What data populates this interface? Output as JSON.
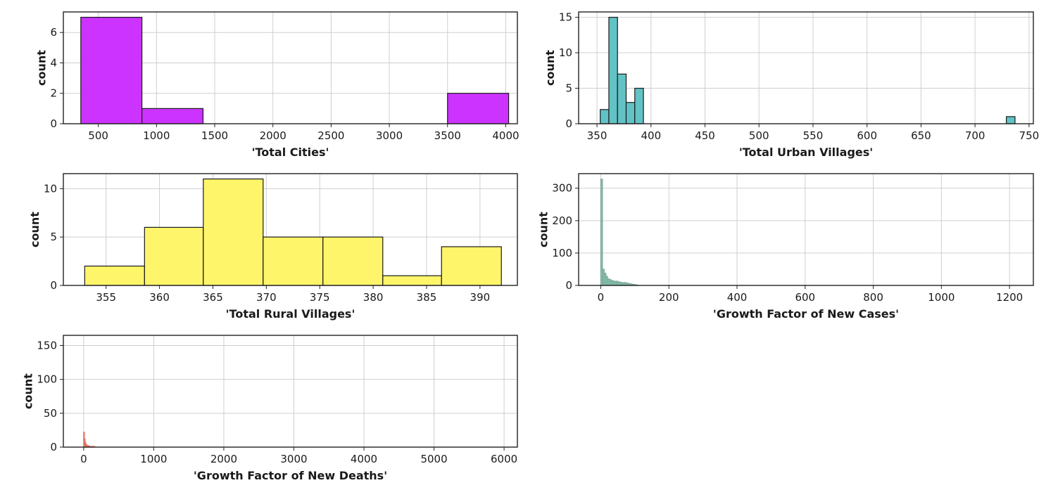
{
  "chart_data": [
    {
      "type": "bar",
      "subtype": "histogram",
      "xlabel": "'Total Cities'",
      "ylabel": "count",
      "xlim": [
        200,
        4100
      ],
      "ylim": [
        0,
        7.35
      ],
      "xticks": [
        500,
        1000,
        1500,
        2000,
        2500,
        3000,
        3500,
        4000
      ],
      "yticks": [
        0,
        2,
        4,
        6
      ],
      "grid": true,
      "color": "#cc33ff",
      "edgecolor": "#1a1a1a",
      "bins": [
        {
          "x0": 350,
          "x1": 875,
          "count": 7
        },
        {
          "x0": 875,
          "x1": 1400,
          "count": 1
        },
        {
          "x0": 3500,
          "x1": 4025,
          "count": 2
        }
      ]
    },
    {
      "type": "bar",
      "subtype": "histogram",
      "xlabel": "'Total Urban Villages'",
      "ylabel": "count",
      "xlim": [
        333,
        754
      ],
      "ylim": [
        0,
        15.75
      ],
      "xticks": [
        350,
        400,
        450,
        500,
        550,
        600,
        650,
        700,
        750
      ],
      "yticks": [
        0,
        5,
        10,
        15
      ],
      "grid": true,
      "color": "#62c2c5",
      "edgecolor": "#1a1a1a",
      "bins": [
        {
          "x0": 353,
          "x1": 361,
          "count": 2
        },
        {
          "x0": 361,
          "x1": 369,
          "count": 15
        },
        {
          "x0": 369,
          "x1": 377,
          "count": 7
        },
        {
          "x0": 377,
          "x1": 385,
          "count": 3
        },
        {
          "x0": 385,
          "x1": 393,
          "count": 5
        },
        {
          "x0": 729,
          "x1": 737,
          "count": 1
        }
      ]
    },
    {
      "type": "bar",
      "subtype": "histogram",
      "xlabel": "'Total Rural Villages'",
      "ylabel": "count",
      "xlim": [
        351,
        393.5
      ],
      "ylim": [
        0,
        11.55
      ],
      "xticks": [
        355,
        360,
        365,
        370,
        375,
        380,
        385,
        390
      ],
      "yticks": [
        0,
        5,
        10
      ],
      "grid": true,
      "color": "#fff56a",
      "edgecolor": "#1a1a1a",
      "bins": [
        {
          "x0": 353,
          "x1": 358.6,
          "count": 2
        },
        {
          "x0": 358.6,
          "x1": 364.1,
          "count": 6
        },
        {
          "x0": 364.1,
          "x1": 369.7,
          "count": 11
        },
        {
          "x0": 369.7,
          "x1": 375.3,
          "count": 5
        },
        {
          "x0": 375.3,
          "x1": 380.9,
          "count": 5
        },
        {
          "x0": 380.9,
          "x1": 386.4,
          "count": 1
        },
        {
          "x0": 386.4,
          "x1": 392,
          "count": 4
        }
      ]
    },
    {
      "type": "bar",
      "subtype": "histogram",
      "xlabel": "'Growth Factor of New Cases'",
      "ylabel": "count",
      "xlim": [
        -65,
        1270
      ],
      "ylim": [
        0,
        345
      ],
      "xticks": [
        0,
        200,
        400,
        600,
        800,
        1000,
        1200
      ],
      "yticks": [
        0,
        100,
        200,
        300
      ],
      "grid": true,
      "color": "#7fc8b0",
      "edgecolor": "#7fa89a",
      "bins": [
        {
          "x0": 0,
          "x1": 5,
          "count": 328
        },
        {
          "x0": 5,
          "x1": 10,
          "count": 50
        },
        {
          "x0": 10,
          "x1": 15,
          "count": 38
        },
        {
          "x0": 15,
          "x1": 20,
          "count": 28
        },
        {
          "x0": 20,
          "x1": 25,
          "count": 20
        },
        {
          "x0": 25,
          "x1": 30,
          "count": 18
        },
        {
          "x0": 30,
          "x1": 35,
          "count": 15
        },
        {
          "x0": 35,
          "x1": 40,
          "count": 14
        },
        {
          "x0": 40,
          "x1": 45,
          "count": 12
        },
        {
          "x0": 45,
          "x1": 50,
          "count": 13
        },
        {
          "x0": 50,
          "x1": 55,
          "count": 11
        },
        {
          "x0": 55,
          "x1": 60,
          "count": 10
        },
        {
          "x0": 60,
          "x1": 65,
          "count": 9
        },
        {
          "x0": 65,
          "x1": 70,
          "count": 8
        },
        {
          "x0": 70,
          "x1": 75,
          "count": 9
        },
        {
          "x0": 75,
          "x1": 80,
          "count": 7
        },
        {
          "x0": 80,
          "x1": 85,
          "count": 6
        },
        {
          "x0": 85,
          "x1": 90,
          "count": 5
        },
        {
          "x0": 90,
          "x1": 95,
          "count": 4
        },
        {
          "x0": 95,
          "x1": 100,
          "count": 3
        },
        {
          "x0": 100,
          "x1": 105,
          "count": 2
        },
        {
          "x0": 105,
          "x1": 110,
          "count": 1
        }
      ]
    },
    {
      "type": "bar",
      "subtype": "histogram",
      "xlabel": "'Growth Factor of New Deaths'",
      "ylabel": "count",
      "xlim": [
        -290,
        6190
      ],
      "ylim": [
        0,
        165
      ],
      "xticks": [
        0,
        1000,
        2000,
        3000,
        4000,
        5000,
        6000
      ],
      "yticks": [
        0,
        50,
        100,
        150
      ],
      "grid": true,
      "color": "#f08a78",
      "edgecolor": "#e07060",
      "bins": [
        {
          "x0": 0,
          "x1": 10,
          "count": 22
        },
        {
          "x0": 10,
          "x1": 20,
          "count": 12
        },
        {
          "x0": 20,
          "x1": 30,
          "count": 7
        },
        {
          "x0": 30,
          "x1": 40,
          "count": 4
        },
        {
          "x0": 40,
          "x1": 50,
          "count": 3
        },
        {
          "x0": 50,
          "x1": 60,
          "count": 2
        },
        {
          "x0": 60,
          "x1": 80,
          "count": 2
        },
        {
          "x0": 80,
          "x1": 110,
          "count": 1
        },
        {
          "x0": 110,
          "x1": 160,
          "count": 1
        }
      ]
    }
  ]
}
